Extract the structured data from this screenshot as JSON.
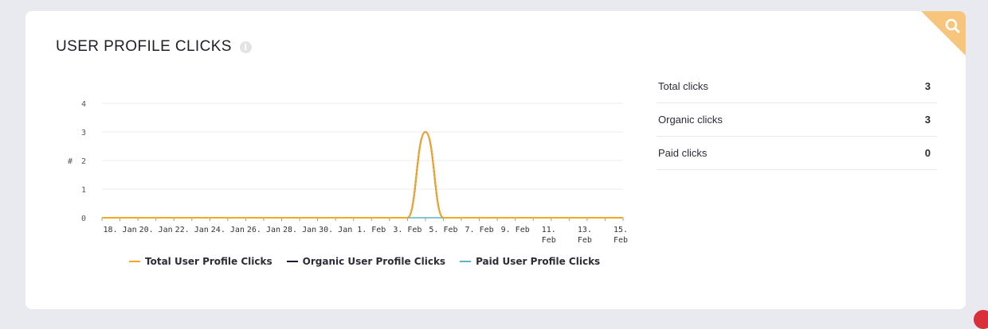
{
  "widget": {
    "title": "USER PROFILE CLICKS",
    "info_icon": "info-icon",
    "corner_icon": "search-icon",
    "corner_color": "#f7c57c"
  },
  "stats": [
    {
      "label": "Total clicks",
      "value": "3"
    },
    {
      "label": "Organic clicks",
      "value": "3"
    },
    {
      "label": "Paid clicks",
      "value": "0"
    }
  ],
  "chart_data": {
    "type": "line",
    "ylabel": "#",
    "ylim": [
      0,
      4
    ],
    "yticks": [
      "0",
      "1",
      "2",
      "3",
      "4"
    ],
    "xlim": [
      "2021-01-17",
      "2021-02-15"
    ],
    "x_tick_labels": [
      [
        "18. Jan"
      ],
      [
        "20. Jan"
      ],
      [
        "22. Jan"
      ],
      [
        "24. Jan"
      ],
      [
        "26. Jan"
      ],
      [
        "28. Jan"
      ],
      [
        "30. Jan"
      ],
      [
        "1. Feb"
      ],
      [
        "3. Feb"
      ],
      [
        "5. Feb"
      ],
      [
        "7. Feb"
      ],
      [
        "9. Feb"
      ],
      [
        "11.",
        "Feb"
      ],
      [
        "13.",
        "Feb"
      ],
      [
        "15.",
        "Feb"
      ]
    ],
    "x": [
      "2021-01-17",
      "2021-01-18",
      "2021-01-19",
      "2021-01-20",
      "2021-01-21",
      "2021-01-22",
      "2021-01-23",
      "2021-01-24",
      "2021-01-25",
      "2021-01-26",
      "2021-01-27",
      "2021-01-28",
      "2021-01-29",
      "2021-01-30",
      "2021-01-31",
      "2021-02-01",
      "2021-02-02",
      "2021-02-03",
      "2021-02-04",
      "2021-02-05",
      "2021-02-06",
      "2021-02-07",
      "2021-02-08",
      "2021-02-09",
      "2021-02-10",
      "2021-02-11",
      "2021-02-12",
      "2021-02-13",
      "2021-02-14",
      "2021-02-15"
    ],
    "series": [
      {
        "name": "Total User Profile Clicks",
        "color": "#f5a623",
        "values": [
          0,
          0,
          0,
          0,
          0,
          0,
          0,
          0,
          0,
          0,
          0,
          0,
          0,
          0,
          0,
          0,
          0,
          0,
          3,
          0,
          0,
          0,
          0,
          0,
          0,
          0,
          0,
          0,
          0,
          0
        ]
      },
      {
        "name": "Organic User Profile Clicks",
        "color": "#1b1a33",
        "values": [
          0,
          0,
          0,
          0,
          0,
          0,
          0,
          0,
          0,
          0,
          0,
          0,
          0,
          0,
          0,
          0,
          0,
          0,
          3,
          0,
          0,
          0,
          0,
          0,
          0,
          0,
          0,
          0,
          0,
          0
        ]
      },
      {
        "name": "Paid User Profile Clicks",
        "color": "#5fb4c3",
        "values": [
          0,
          0,
          0,
          0,
          0,
          0,
          0,
          0,
          0,
          0,
          0,
          0,
          0,
          0,
          0,
          0,
          0,
          0,
          0,
          0,
          0,
          0,
          0,
          0,
          0,
          0,
          0,
          0,
          0,
          0
        ]
      }
    ],
    "grid": true,
    "legend_position": "bottom"
  }
}
